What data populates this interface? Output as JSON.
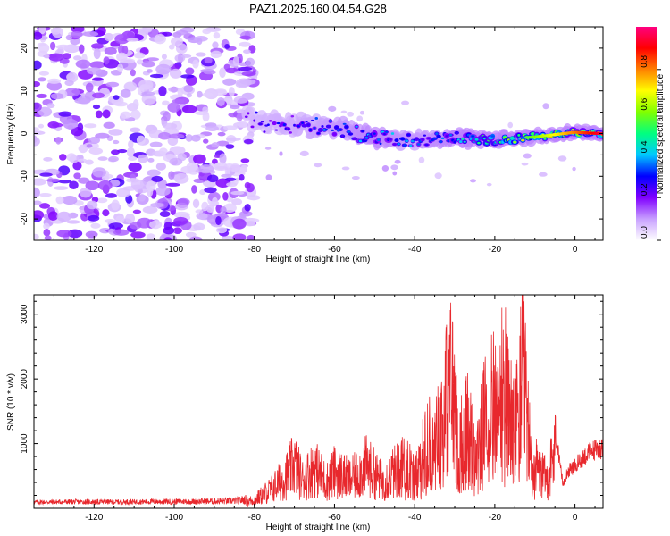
{
  "title": "PAZ1.2025.160.04.54.G28",
  "chart_data": [
    {
      "type": "heatmap",
      "xlabel": "Height of straight line (km)",
      "ylabel": "Frequency (Hz)",
      "xlim": [
        -135,
        7
      ],
      "ylim": [
        -25,
        25
      ],
      "xticks": [
        -120,
        -100,
        -80,
        -60,
        -40,
        -20,
        0
      ],
      "yticks": [
        -20,
        -10,
        0,
        10,
        20
      ],
      "colorbar": {
        "label": "Normalized spectral amplitude",
        "range": [
          0,
          1
        ],
        "ticks": [
          "0.0",
          "0.2",
          "0.4",
          "0.6",
          "0.8"
        ],
        "colors": [
          "#ffffff",
          "#c8a0ff",
          "#8000ff",
          "#0000ff",
          "#00c8ff",
          "#00ff80",
          "#80ff00",
          "#ffff00",
          "#ff8000",
          "#ff0000",
          "#ff0080"
        ]
      },
      "description_of_signal": {
        "noise_region_x": [
          -135,
          -82
        ],
        "signal_track": [
          {
            "x": -82,
            "freq": 3,
            "amp": 0.25
          },
          {
            "x": -70,
            "freq": 2,
            "amp": 0.3
          },
          {
            "x": -60,
            "freq": 1.5,
            "amp": 0.35
          },
          {
            "x": -50,
            "freq": -1,
            "amp": 0.4
          },
          {
            "x": -40,
            "freq": -1.5,
            "amp": 0.35
          },
          {
            "x": -30,
            "freq": -1,
            "amp": 0.4
          },
          {
            "x": -20,
            "freq": -1.5,
            "amp": 0.55
          },
          {
            "x": -10,
            "freq": -0.8,
            "amp": 0.75
          },
          {
            "x": 0,
            "freq": 0.3,
            "amp": 0.9
          },
          {
            "x": 6,
            "freq": 0,
            "amp": 0.95
          }
        ]
      }
    },
    {
      "type": "line",
      "xlabel": "Height of straight line (km)",
      "ylabel": "SNR (10 * v/v)",
      "xlim": [
        -135,
        7
      ],
      "ylim": [
        0,
        3300
      ],
      "xticks": [
        -120,
        -100,
        -80,
        -60,
        -40,
        -20,
        0
      ],
      "yticks": [
        1000,
        2000,
        3000
      ],
      "color": "#e8282d",
      "series": [
        {
          "x": [
            -135,
            -125,
            -115,
            -105,
            -95,
            -85,
            -80,
            -76,
            -72,
            -70,
            -68,
            -65,
            -62,
            -60,
            -56,
            -52,
            -48,
            -45,
            -42,
            -40,
            -38,
            -35,
            -33,
            -31,
            -30,
            -29,
            -27,
            -25,
            -23,
            -21,
            -19,
            -18,
            -17,
            -15,
            -13,
            -11,
            -9,
            -7,
            -5,
            -4,
            -3,
            -2,
            -1,
            0,
            2,
            4,
            6
          ],
          "values": [
            80,
            90,
            85,
            95,
            100,
            120,
            200,
            450,
            800,
            1100,
            700,
            1000,
            650,
            900,
            700,
            1050,
            650,
            900,
            1100,
            750,
            1300,
            1800,
            2300,
            3200,
            2500,
            1400,
            2100,
            1300,
            1900,
            3100,
            2000,
            3300,
            2600,
            1800,
            3300,
            1200,
            900,
            700,
            1400,
            800,
            400,
            600,
            650,
            700,
            850,
            950,
            1000
          ]
        }
      ]
    }
  ]
}
